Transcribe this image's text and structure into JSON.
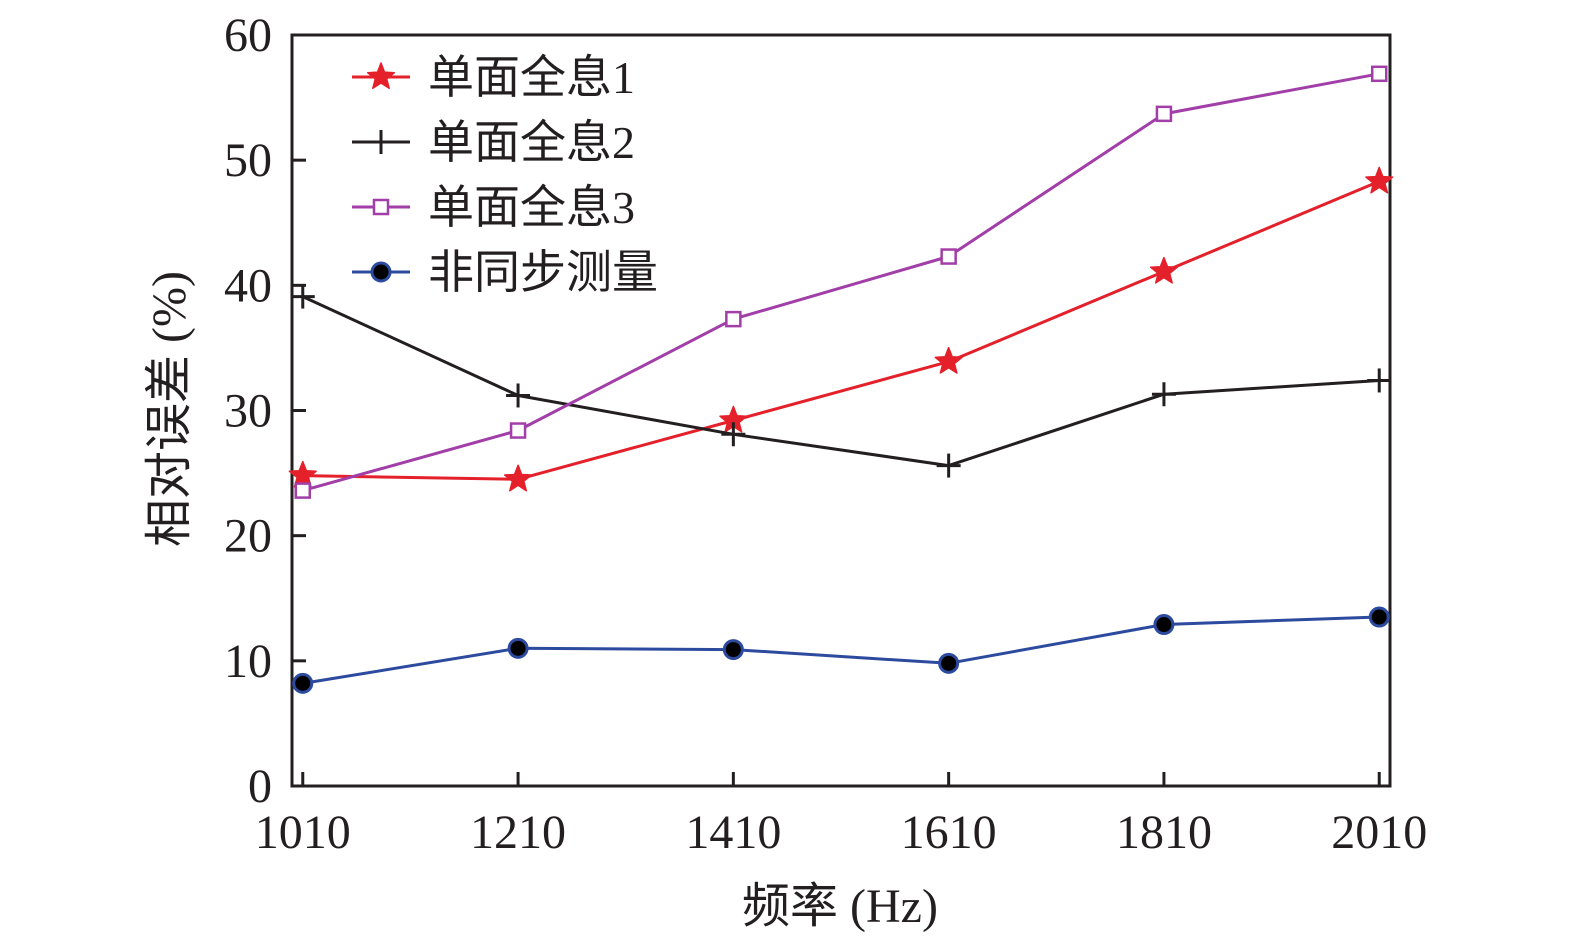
{
  "chart_data": {
    "type": "line",
    "xlabel": "频率 (Hz)",
    "ylabel": "相对误差 (%)",
    "x": [
      1010,
      1210,
      1410,
      1610,
      1810,
      2010
    ],
    "xlim": [
      1000,
      2020
    ],
    "ylim": [
      0,
      60
    ],
    "x_ticks": [
      "1010",
      "1210",
      "1410",
      "1610",
      "1810",
      "2010"
    ],
    "y_ticks": [
      "0",
      "10",
      "20",
      "30",
      "40",
      "50",
      "60"
    ],
    "legend_position": "top-left",
    "grid": false,
    "series": [
      {
        "name": "单面全息1",
        "color": "#e4202a",
        "marker": "star",
        "values": [
          24.8,
          24.5,
          29.2,
          33.9,
          41.1,
          48.3
        ]
      },
      {
        "name": "单面全息2",
        "color": "#231f20",
        "marker": "plus",
        "values": [
          39.1,
          31.2,
          28.1,
          25.6,
          31.3,
          32.4
        ]
      },
      {
        "name": "单面全息3",
        "color": "#a23ea8",
        "marker": "square",
        "values": [
          23.6,
          28.4,
          37.3,
          42.3,
          53.7,
          56.9
        ]
      },
      {
        "name": "非同步测量",
        "color": "#2c4a9e",
        "marker": "circle",
        "values": [
          8.2,
          11.0,
          10.9,
          9.8,
          12.9,
          13.5
        ]
      }
    ]
  }
}
